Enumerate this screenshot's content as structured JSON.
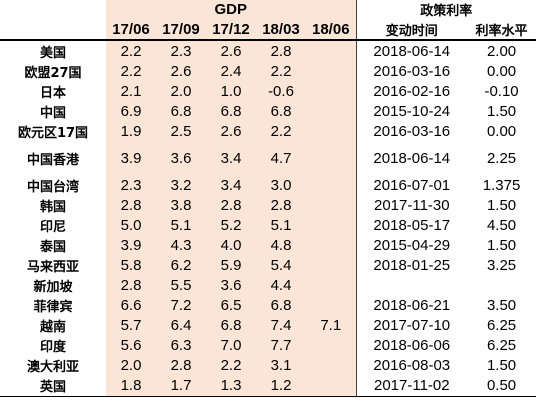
{
  "header": {
    "gdp_label": "GDP",
    "policy_label": "政策利率",
    "periods": [
      "17/06",
      "17/09",
      "17/12",
      "18/03",
      "18/06"
    ],
    "change_time_label": "变动时间",
    "rate_level_label": "利率水平"
  },
  "rows": [
    {
      "name": "美国",
      "g1": "2.2",
      "g2": "2.3",
      "g3": "2.6",
      "g4": "2.8",
      "g5": "",
      "date": "2018-06-14",
      "rate": "2.00"
    },
    {
      "name": "欧盟27国",
      "g1": "2.2",
      "g2": "2.6",
      "g3": "2.4",
      "g4": "2.2",
      "g5": "",
      "date": "2016-03-16",
      "rate": "0.00"
    },
    {
      "name": "日本",
      "g1": "2.1",
      "g2": "2.0",
      "g3": "1.0",
      "g4": "-0.6",
      "g5": "",
      "date": "2016-02-16",
      "rate": "-0.10"
    },
    {
      "name": "中国",
      "g1": "6.9",
      "g2": "6.8",
      "g3": "6.8",
      "g4": "6.8",
      "g5": "",
      "date": "2015-10-24",
      "rate": "1.50"
    },
    {
      "name": "欧元区17国",
      "g1": "1.9",
      "g2": "2.5",
      "g3": "2.6",
      "g4": "2.2",
      "g5": "",
      "date": "2016-03-16",
      "rate": "0.00"
    },
    {
      "name": "中国香港",
      "g1": "3.9",
      "g2": "3.6",
      "g3": "3.4",
      "g4": "4.7",
      "g5": "",
      "date": "2018-06-14",
      "rate": "2.25"
    },
    {
      "name": "中国台湾",
      "g1": "2.3",
      "g2": "3.2",
      "g3": "3.4",
      "g4": "3.0",
      "g5": "",
      "date": "2016-07-01",
      "rate": "1.375"
    },
    {
      "name": "韩国",
      "g1": "2.8",
      "g2": "3.8",
      "g3": "2.8",
      "g4": "2.8",
      "g5": "",
      "date": "2017-11-30",
      "rate": "1.50"
    },
    {
      "name": "印尼",
      "g1": "5.0",
      "g2": "5.1",
      "g3": "5.2",
      "g4": "5.1",
      "g5": "",
      "date": "2018-05-17",
      "rate": "4.50"
    },
    {
      "name": "泰国",
      "g1": "3.9",
      "g2": "4.3",
      "g3": "4.0",
      "g4": "4.8",
      "g5": "",
      "date": "2015-04-29",
      "rate": "1.50"
    },
    {
      "name": "马来西亚",
      "g1": "5.8",
      "g2": "6.2",
      "g3": "5.9",
      "g4": "5.4",
      "g5": "",
      "date": "2018-01-25",
      "rate": "3.25"
    },
    {
      "name": "新加坡",
      "g1": "2.8",
      "g2": "5.5",
      "g3": "3.6",
      "g4": "4.4",
      "g5": "",
      "date": "",
      "rate": ""
    },
    {
      "name": "菲律宾",
      "g1": "6.6",
      "g2": "7.2",
      "g3": "6.5",
      "g4": "6.8",
      "g5": "",
      "date": "2018-06-21",
      "rate": "3.50"
    },
    {
      "name": "越南",
      "g1": "5.7",
      "g2": "6.4",
      "g3": "6.8",
      "g4": "7.4",
      "g5": "7.1",
      "date": "2017-07-10",
      "rate": "6.25"
    },
    {
      "name": "印度",
      "g1": "5.6",
      "g2": "6.3",
      "g3": "7.0",
      "g4": "7.7",
      "g5": "",
      "date": "2018-06-06",
      "rate": "6.25"
    },
    {
      "name": "澳大利亚",
      "g1": "2.0",
      "g2": "2.8",
      "g3": "2.2",
      "g4": "3.1",
      "g5": "",
      "date": "2016-08-03",
      "rate": "1.50"
    },
    {
      "name": "英国",
      "g1": "1.8",
      "g2": "1.7",
      "g3": "1.3",
      "g4": "1.2",
      "g5": "",
      "date": "2017-11-02",
      "rate": "0.50"
    }
  ]
}
